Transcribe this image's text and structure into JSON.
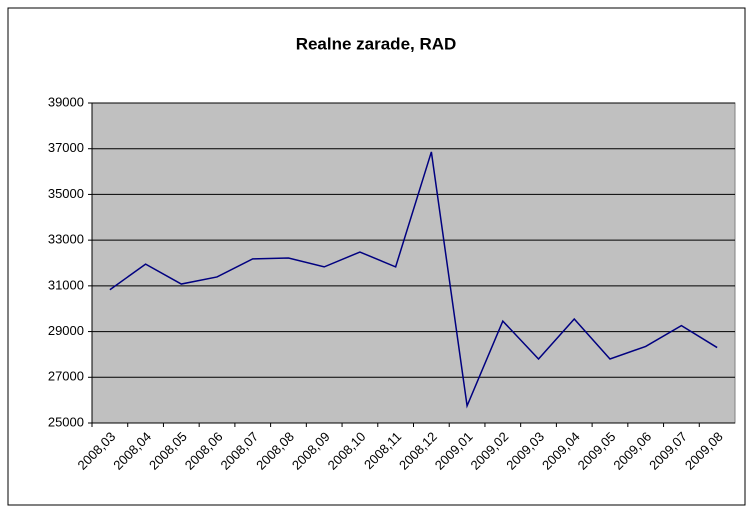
{
  "chart_data": {
    "type": "line",
    "title": "Realne zarade, RAD",
    "categories": [
      "2008,03",
      "2008,04",
      "2008,05",
      "2008,06",
      "2008,07",
      "2008,08",
      "2008,09",
      "2008,10",
      "2008,11",
      "2008,12",
      "2009,01",
      "2009,02",
      "2009,03",
      "2009,04",
      "2009,05",
      "2009,06",
      "2009,07",
      "2009,08"
    ],
    "series": [
      {
        "name": "Realne zarade",
        "color": "#000080",
        "values": [
          30830,
          31950,
          31080,
          31390,
          32180,
          32220,
          31830,
          32480,
          31830,
          36860,
          25750,
          29460,
          27800,
          29550,
          27800,
          28350,
          29260,
          28300
        ]
      }
    ],
    "ylim": [
      25000,
      39000
    ],
    "yticks": [
      25000,
      27000,
      29000,
      31000,
      33000,
      35000,
      37000,
      39000
    ],
    "grid": true,
    "plot_background": "#c0c0c0"
  }
}
